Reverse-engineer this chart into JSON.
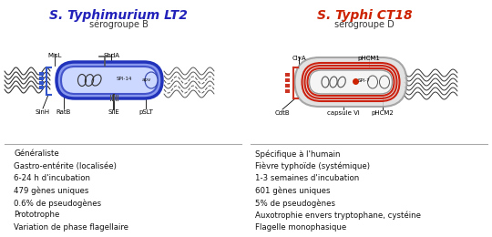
{
  "title_left": "S. Typhimurium LT2",
  "title_right": "S. Typhi CT18",
  "subtitle_left": "sérogroupe B",
  "subtitle_right": "sérogroupe D",
  "title_left_color": "#2222bb",
  "title_right_color": "#cc2200",
  "left_text": [
    "Généraliste",
    "Gastro-entérite (localisée)",
    "6-24 h d'incubation",
    "479 gènes uniques",
    "0.6% de pseudogènes",
    "Prototrophe",
    "Variation de phase flagellaire"
  ],
  "right_text": [
    "Spécifique à l'humain",
    "Fièvre typhoïde (systémique)",
    "1-3 semaines d'incubation",
    "601 gènes uniques",
    "5% de pseudogènes",
    "Auxotrophie envers tryptophane, cystéine",
    "Flagelle monophasique"
  ],
  "bg_color": "#ffffff"
}
